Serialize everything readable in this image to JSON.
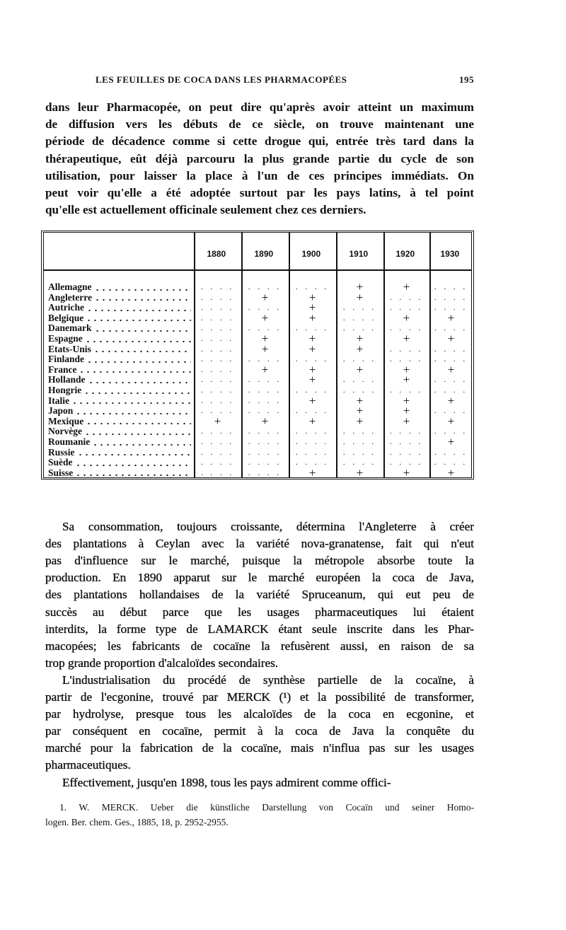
{
  "header": {
    "running_title": "LES FEUILLES DE COCA DANS LES PHARMACOPÉES",
    "page_number": "195"
  },
  "para1": [
    "dans leur Pharmacopée, on peut dire qu'après avoir atteint un maximum",
    "de diffusion vers les débuts de ce siècle, on trouve maintenant une",
    "période de décadence comme si cette drogue qui, entrée très tard dans la",
    "thérapeutique, eût déjà parcouru la plus grande partie du cycle de son",
    "utilisation, pour laisser la place à l'un de ces principes immédiats. On",
    "peut voir qu'elle a été adoptée surtout par les pays latins, à tel point",
    "qu'elle est actuellement officinale seulement chez ces derniers."
  ],
  "table": {
    "years": [
      "1880",
      "1890",
      "1900",
      "1910",
      "1920",
      "1930"
    ],
    "mark": "+",
    "rows": [
      {
        "country": "Allemagne",
        "adopted": [
          0,
          0,
          0,
          1,
          1,
          0
        ]
      },
      {
        "country": "Angleterre",
        "adopted": [
          0,
          1,
          1,
          1,
          0,
          0
        ]
      },
      {
        "country": "Autriche",
        "adopted": [
          0,
          0,
          1,
          0,
          0,
          0
        ]
      },
      {
        "country": "Belgique",
        "adopted": [
          0,
          1,
          1,
          0,
          1,
          1
        ]
      },
      {
        "country": "Danemark",
        "adopted": [
          0,
          0,
          0,
          0,
          0,
          0
        ]
      },
      {
        "country": "Espagne",
        "adopted": [
          0,
          1,
          1,
          1,
          1,
          1
        ]
      },
      {
        "country": "Etats-Unis",
        "adopted": [
          0,
          1,
          1,
          1,
          0,
          0
        ]
      },
      {
        "country": "Finlande",
        "adopted": [
          0,
          0,
          0,
          0,
          0,
          0
        ]
      },
      {
        "country": "France",
        "adopted": [
          0,
          1,
          1,
          1,
          1,
          1
        ]
      },
      {
        "country": "Hollande",
        "adopted": [
          0,
          0,
          1,
          0,
          1,
          0
        ]
      },
      {
        "country": "Hongrie",
        "adopted": [
          0,
          0,
          0,
          0,
          0,
          0
        ]
      },
      {
        "country": "Italie",
        "adopted": [
          0,
          0,
          1,
          1,
          1,
          1
        ]
      },
      {
        "country": "Japon",
        "adopted": [
          0,
          0,
          0,
          1,
          1,
          0
        ]
      },
      {
        "country": "Mexique",
        "adopted": [
          1,
          1,
          1,
          1,
          1,
          1
        ]
      },
      {
        "country": "Norvège",
        "adopted": [
          0,
          0,
          0,
          0,
          0,
          0
        ]
      },
      {
        "country": "Roumanie",
        "adopted": [
          0,
          0,
          0,
          0,
          0,
          1
        ]
      },
      {
        "country": "Russie",
        "adopted": [
          0,
          0,
          0,
          0,
          0,
          0
        ]
      },
      {
        "country": "Suède",
        "adopted": [
          0,
          0,
          0,
          0,
          0,
          0
        ]
      },
      {
        "country": "Suisse",
        "adopted": [
          0,
          0,
          1,
          1,
          1,
          1
        ]
      }
    ]
  },
  "para2": [
    "Sa consommation, toujours croissante, détermina l'Angleterre à créer",
    "des plantations à Ceylan avec la variété nova-granatense, fait qui n'eut",
    "pas d'influence sur le marché, puisque la métropole absorbe toute la",
    "production. En 1890 apparut sur le marché européen la coca de Java,",
    "des plantations hollandaises de la variété Spruceanum, qui eut peu de",
    "succès au début parce que les usages pharmaceutiques lui étaient",
    "interdits, la forme type de LAMARCK étant seule inscrite dans les Phar-",
    "macopées; les fabricants de cocaïne la refusèrent aussi, en raison de sa",
    "trop grande proportion d'alcaloïdes secondaires.",
    "L'industrialisation du procédé de synthèse partielle de la cocaïne, à",
    "partir de l'ecgonine, trouvé par MERCK (¹) et la possibilité de transformer,",
    "par hydrolyse, presque tous les alcaloïdes de la coca en ecgonine, et",
    "par conséquent en cocaïne, permit à la coca de Java la conquête du",
    "marché pour la fabrication de la cocaïne, mais n'influa pas sur les usages",
    "pharmaceutiques.",
    "Effectivement, jusqu'en 1898, tous les pays admirent comme offici-"
  ],
  "footnote": [
    "1. W. MERCK. Ueber die künstliche Darstellung von Cocaïn und seiner Homo-",
    "logen. Ber. chem. Ges., 1885, 18, p. 2952-2955."
  ]
}
